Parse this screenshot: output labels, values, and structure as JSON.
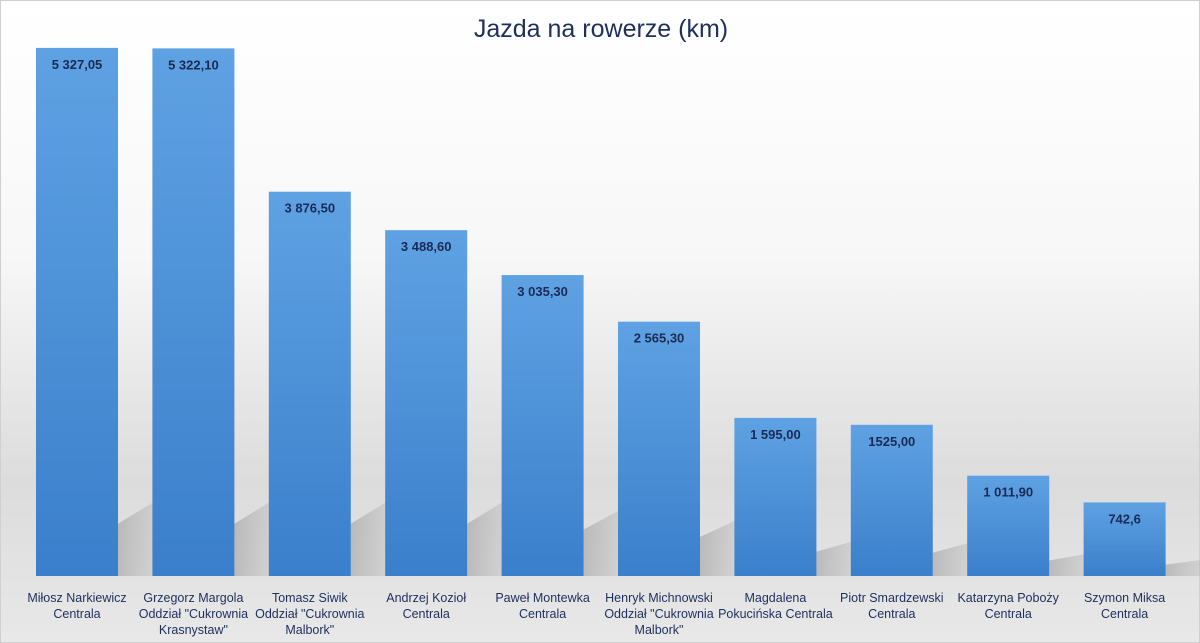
{
  "chart_data": {
    "type": "bar",
    "title": "Jazda na rowerze (km)",
    "xlabel": "",
    "ylabel": "",
    "ylim": [
      0,
      5800
    ],
    "grid": false,
    "legend": "none",
    "bar_color": "#4a8ed6",
    "categories": [
      [
        "Miłosz Narkiewicz",
        "Centrala"
      ],
      [
        "Grzegorz Margola",
        "Oddział \"Cukrownia",
        "Krasnystaw\""
      ],
      [
        "Tomasz Siwik",
        "Oddział \"Cukrownia",
        "Malbork\""
      ],
      [
        "Andrzej Kozioł",
        "Centrala"
      ],
      [
        "Paweł Montewka",
        "Centrala"
      ],
      [
        "Henryk Michnowski",
        "Oddział \"Cukrownia",
        "Malbork\""
      ],
      [
        "Magdalena",
        "Pokucińska Centrala"
      ],
      [
        "Piotr Smardzewski",
        "Centrala"
      ],
      [
        "Katarzyna Poboży",
        "Centrala"
      ],
      [
        "Szymon Miksa",
        "Centrala"
      ]
    ],
    "values": [
      5327.05,
      5322.1,
      3876.5,
      3488.6,
      3035.3,
      2565.3,
      1595.0,
      1525.0,
      1011.9,
      742.6
    ],
    "data_labels": [
      "5 327,05",
      "5 322,10",
      "3 876,50",
      "3 488,60",
      "3 035,30",
      "2 565,30",
      "1 595,00",
      "1525,00",
      "1 011,90",
      "742,6"
    ]
  }
}
